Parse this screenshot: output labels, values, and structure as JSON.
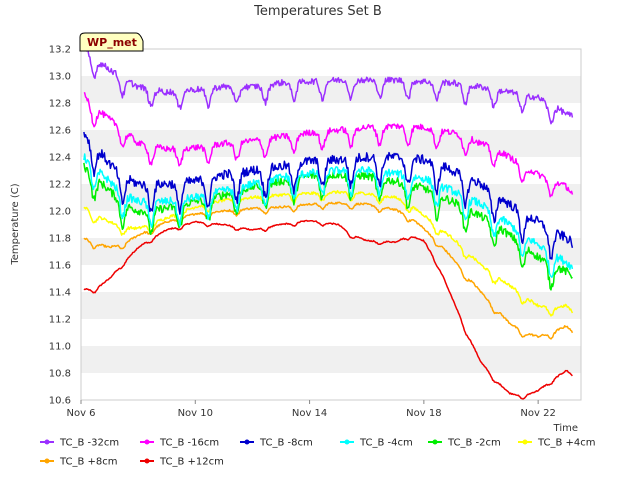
{
  "chart_data": {
    "type": "line",
    "title": "Temperatures Set B",
    "xlabel": "Time",
    "ylabel": "Temperature (C)",
    "badge": "WP_met",
    "xlim": [
      6,
      23.5
    ],
    "ylim": [
      10.6,
      13.2
    ],
    "x_ticks": [
      {
        "value": 6,
        "label": "Nov 6"
      },
      {
        "value": 10,
        "label": "Nov 10"
      },
      {
        "value": 14,
        "label": "Nov 14"
      },
      {
        "value": 18,
        "label": "Nov 18"
      },
      {
        "value": 22,
        "label": "Nov 22"
      }
    ],
    "y_ticks": [
      10.6,
      10.8,
      11.0,
      11.2,
      11.4,
      11.6,
      11.8,
      12.0,
      12.2,
      12.4,
      12.6,
      12.8,
      13.0,
      13.2
    ],
    "grid": "horizontal bands",
    "legend_position": "bottom",
    "x_unit": "day of November",
    "series": [
      {
        "name": "TC_B -32cm",
        "color": "#9b30ff",
        "daily_amplitude": 0.13,
        "points": [
          [
            6.1,
            13.2
          ],
          [
            6.5,
            13.12
          ],
          [
            7,
            13.05
          ],
          [
            7.5,
            12.98
          ],
          [
            8,
            12.92
          ],
          [
            8.5,
            12.9
          ],
          [
            9,
            12.88
          ],
          [
            10,
            12.9
          ],
          [
            11,
            12.92
          ],
          [
            12,
            12.92
          ],
          [
            13,
            12.95
          ],
          [
            14,
            12.96
          ],
          [
            15,
            12.97
          ],
          [
            16,
            12.97
          ],
          [
            17,
            12.97
          ],
          [
            18,
            12.96
          ],
          [
            19,
            12.95
          ],
          [
            19.5,
            12.93
          ],
          [
            20,
            12.92
          ],
          [
            21,
            12.88
          ],
          [
            22,
            12.84
          ],
          [
            22.5,
            12.78
          ],
          [
            23,
            12.72
          ],
          [
            23.2,
            12.7
          ]
        ]
      },
      {
        "name": "TC_B -16cm",
        "color": "#ff00ff",
        "daily_amplitude": 0.13,
        "points": [
          [
            6.1,
            12.86
          ],
          [
            6.5,
            12.76
          ],
          [
            7,
            12.68
          ],
          [
            7.5,
            12.6
          ],
          [
            8,
            12.5
          ],
          [
            9,
            12.46
          ],
          [
            10,
            12.47
          ],
          [
            11,
            12.5
          ],
          [
            12,
            12.52
          ],
          [
            13,
            12.55
          ],
          [
            14,
            12.58
          ],
          [
            15,
            12.6
          ],
          [
            16,
            12.62
          ],
          [
            17,
            12.63
          ],
          [
            18,
            12.62
          ],
          [
            19,
            12.58
          ],
          [
            19.5,
            12.55
          ],
          [
            20,
            12.5
          ],
          [
            20.5,
            12.46
          ],
          [
            21,
            12.4
          ],
          [
            21.5,
            12.33
          ],
          [
            22,
            12.27
          ],
          [
            22.5,
            12.23
          ],
          [
            23,
            12.18
          ],
          [
            23.2,
            12.13
          ]
        ]
      },
      {
        "name": "TC_B -8cm",
        "color": "#0000cd",
        "daily_amplitude": 0.2,
        "points": [
          [
            6.1,
            12.58
          ],
          [
            6.5,
            12.48
          ],
          [
            7,
            12.35
          ],
          [
            7.5,
            12.25
          ],
          [
            8,
            12.2
          ],
          [
            9,
            12.2
          ],
          [
            10,
            12.22
          ],
          [
            11,
            12.27
          ],
          [
            12,
            12.3
          ],
          [
            13,
            12.33
          ],
          [
            14,
            12.37
          ],
          [
            15,
            12.38
          ],
          [
            16,
            12.4
          ],
          [
            17,
            12.4
          ],
          [
            18,
            12.38
          ],
          [
            18.5,
            12.35
          ],
          [
            19,
            12.3
          ],
          [
            19.5,
            12.25
          ],
          [
            20,
            12.2
          ],
          [
            20.5,
            12.12
          ],
          [
            21,
            12.05
          ],
          [
            21.5,
            11.98
          ],
          [
            22,
            11.92
          ],
          [
            22.5,
            11.85
          ],
          [
            23,
            11.8
          ],
          [
            23.2,
            11.76
          ]
        ]
      },
      {
        "name": "TC_B -4cm",
        "color": "#00ffff",
        "daily_amplitude": 0.17,
        "points": [
          [
            6.1,
            12.4
          ],
          [
            6.5,
            12.32
          ],
          [
            7,
            12.22
          ],
          [
            7.5,
            12.12
          ],
          [
            8,
            12.07
          ],
          [
            9,
            12.07
          ],
          [
            10,
            12.1
          ],
          [
            11,
            12.15
          ],
          [
            12,
            12.2
          ],
          [
            13,
            12.25
          ],
          [
            14,
            12.28
          ],
          [
            15,
            12.3
          ],
          [
            16,
            12.3
          ],
          [
            17,
            12.28
          ],
          [
            18,
            12.24
          ],
          [
            18.5,
            12.2
          ],
          [
            19,
            12.15
          ],
          [
            19.5,
            12.1
          ],
          [
            20,
            12.05
          ],
          [
            20.5,
            11.97
          ],
          [
            21,
            11.9
          ],
          [
            21.5,
            11.82
          ],
          [
            22,
            11.75
          ],
          [
            22.5,
            11.68
          ],
          [
            23,
            11.62
          ],
          [
            23.2,
            11.58
          ]
        ]
      },
      {
        "name": "TC_B -2cm",
        "color": "#00ee00",
        "daily_amplitude": 0.17,
        "points": [
          [
            6.1,
            12.33
          ],
          [
            6.5,
            12.25
          ],
          [
            7,
            12.15
          ],
          [
            7.5,
            12.05
          ],
          [
            8,
            12.0
          ],
          [
            9,
            12.02
          ],
          [
            10,
            12.07
          ],
          [
            11,
            12.12
          ],
          [
            12,
            12.18
          ],
          [
            13,
            12.22
          ],
          [
            14,
            12.26
          ],
          [
            15,
            12.27
          ],
          [
            16,
            12.26
          ],
          [
            17,
            12.22
          ],
          [
            18,
            12.17
          ],
          [
            18.5,
            12.12
          ],
          [
            19,
            12.07
          ],
          [
            19.5,
            12.02
          ],
          [
            20,
            11.96
          ],
          [
            20.5,
            11.9
          ],
          [
            21,
            11.82
          ],
          [
            21.5,
            11.74
          ],
          [
            22,
            11.66
          ],
          [
            22.5,
            11.6
          ],
          [
            23,
            11.55
          ],
          [
            23.2,
            11.52
          ]
        ]
      },
      {
        "name": "TC_B +4cm",
        "color": "#ffff00",
        "daily_amplitude": 0.06,
        "points": [
          [
            6.1,
            12.03
          ],
          [
            6.5,
            11.97
          ],
          [
            7,
            11.92
          ],
          [
            7.5,
            11.88
          ],
          [
            8,
            11.87
          ],
          [
            9,
            11.95
          ],
          [
            10,
            12.03
          ],
          [
            11,
            12.08
          ],
          [
            12,
            12.1
          ],
          [
            13,
            12.12
          ],
          [
            14,
            12.13
          ],
          [
            15,
            12.14
          ],
          [
            16,
            12.13
          ],
          [
            17,
            12.1
          ],
          [
            17.5,
            12.05
          ],
          [
            18,
            11.97
          ],
          [
            18.5,
            11.88
          ],
          [
            19,
            11.8
          ],
          [
            19.5,
            11.7
          ],
          [
            20,
            11.6
          ],
          [
            20.5,
            11.52
          ],
          [
            21,
            11.45
          ],
          [
            21.5,
            11.37
          ],
          [
            22,
            11.3
          ],
          [
            22.5,
            11.28
          ],
          [
            23,
            11.3
          ],
          [
            23.2,
            11.25
          ]
        ]
      },
      {
        "name": "TC_B +8cm",
        "color": "#ffa500",
        "daily_amplitude": 0.04,
        "points": [
          [
            6.1,
            11.8
          ],
          [
            6.5,
            11.76
          ],
          [
            7,
            11.73
          ],
          [
            7.5,
            11.76
          ],
          [
            8,
            11.82
          ],
          [
            9,
            11.92
          ],
          [
            10,
            11.98
          ],
          [
            11,
            12.0
          ],
          [
            12,
            12.02
          ],
          [
            13,
            12.03
          ],
          [
            14,
            12.05
          ],
          [
            15,
            12.06
          ],
          [
            16,
            12.05
          ],
          [
            17,
            12.01
          ],
          [
            17.5,
            11.96
          ],
          [
            18,
            11.87
          ],
          [
            18.5,
            11.77
          ],
          [
            19,
            11.65
          ],
          [
            19.5,
            11.52
          ],
          [
            20,
            11.4
          ],
          [
            20.5,
            11.28
          ],
          [
            21,
            11.17
          ],
          [
            21.5,
            11.1
          ],
          [
            22,
            11.07
          ],
          [
            22.5,
            11.1
          ],
          [
            23,
            11.15
          ],
          [
            23.2,
            11.1
          ]
        ]
      },
      {
        "name": "TC_B +12cm",
        "color": "#ee0000",
        "daily_amplitude": 0.025,
        "points": [
          [
            6.1,
            11.42
          ],
          [
            6.5,
            11.42
          ],
          [
            7,
            11.5
          ],
          [
            7.5,
            11.62
          ],
          [
            8,
            11.73
          ],
          [
            8.5,
            11.8
          ],
          [
            9,
            11.86
          ],
          [
            10,
            11.92
          ],
          [
            11,
            11.9
          ],
          [
            12,
            11.86
          ],
          [
            13,
            11.9
          ],
          [
            14,
            11.93
          ],
          [
            15,
            11.9
          ],
          [
            15.5,
            11.82
          ],
          [
            16,
            11.78
          ],
          [
            17,
            11.77
          ],
          [
            17.5,
            11.82
          ],
          [
            18,
            11.78
          ],
          [
            18.5,
            11.6
          ],
          [
            19,
            11.35
          ],
          [
            19.5,
            11.1
          ],
          [
            20,
            10.88
          ],
          [
            20.5,
            10.75
          ],
          [
            21,
            10.65
          ],
          [
            21.5,
            10.63
          ],
          [
            22,
            10.67
          ],
          [
            22.5,
            10.75
          ],
          [
            23,
            10.82
          ],
          [
            23.2,
            10.78
          ]
        ]
      }
    ]
  }
}
